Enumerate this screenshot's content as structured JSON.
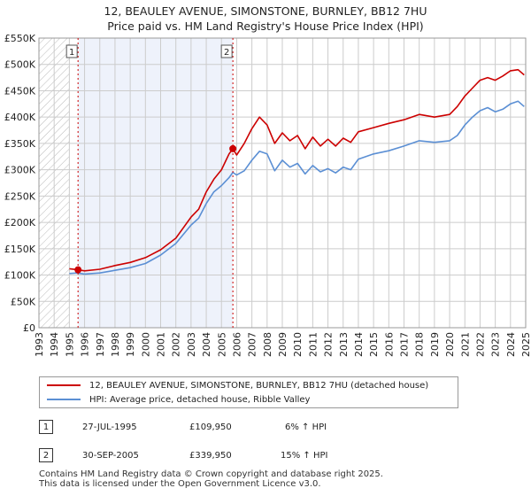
{
  "chart_data": {
    "type": "line",
    "title": "12, BEAULEY AVENUE, SIMONSTONE, BURNLEY, BB12 7HU",
    "subtitle": "Price paid vs. HM Land Registry's House Price Index (HPI)",
    "xlim": [
      1993,
      2025
    ],
    "ylim": [
      0,
      550000
    ],
    "x_ticks": [
      "1993",
      "1994",
      "1995",
      "1996",
      "1997",
      "1998",
      "1999",
      "2000",
      "2001",
      "2002",
      "2003",
      "2004",
      "2005",
      "2006",
      "2007",
      "2008",
      "2009",
      "2010",
      "2011",
      "2012",
      "2013",
      "2014",
      "2015",
      "2016",
      "2017",
      "2018",
      "2019",
      "2020",
      "2021",
      "2022",
      "2023",
      "2024",
      "2025"
    ],
    "y_ticks": [
      {
        "value": 0,
        "label": "£0"
      },
      {
        "value": 50000,
        "label": "£50K"
      },
      {
        "value": 100000,
        "label": "£100K"
      },
      {
        "value": 150000,
        "label": "£150K"
      },
      {
        "value": 200000,
        "label": "£200K"
      },
      {
        "value": 250000,
        "label": "£250K"
      },
      {
        "value": 300000,
        "label": "£300K"
      },
      {
        "value": 350000,
        "label": "£350K"
      },
      {
        "value": 400000,
        "label": "£400K"
      },
      {
        "value": 450000,
        "label": "£450K"
      },
      {
        "value": 500000,
        "label": "£500K"
      },
      {
        "value": 550000,
        "label": "£550K"
      }
    ],
    "grid": true,
    "hatched_before": 1995.0,
    "highlight_range": [
      1995.57,
      2005.75
    ],
    "series": [
      {
        "name": "12, BEAULEY AVENUE, SIMONSTONE, BURNLEY, BB12 7HU (detached house)",
        "color": "#cc0000",
        "x": [
          1995.0,
          1995.57,
          1996,
          1997,
          1998,
          1999,
          2000,
          2001,
          2002,
          2003,
          2003.5,
          2004,
          2004.5,
          2005,
          2005.5,
          2005.75,
          2006,
          2006.5,
          2007,
          2007.5,
          2008,
          2008.5,
          2009,
          2009.5,
          2010,
          2010.5,
          2011,
          2011.5,
          2012,
          2012.5,
          2013,
          2013.5,
          2014,
          2015,
          2016,
          2017,
          2018,
          2019,
          2020,
          2020.5,
          2021,
          2021.5,
          2022,
          2022.5,
          2023,
          2023.5,
          2024,
          2024.5,
          2024.9
        ],
        "y": [
          112000,
          109950,
          108000,
          111000,
          118000,
          124000,
          133000,
          148000,
          170000,
          210000,
          225000,
          258000,
          282000,
          300000,
          330000,
          339950,
          328000,
          350000,
          378000,
          400000,
          385000,
          350000,
          370000,
          355000,
          365000,
          340000,
          362000,
          345000,
          358000,
          345000,
          360000,
          352000,
          372000,
          380000,
          388000,
          395000,
          405000,
          400000,
          405000,
          420000,
          440000,
          455000,
          470000,
          475000,
          470000,
          478000,
          488000,
          490000,
          480000
        ]
      },
      {
        "name": "HPI: Average price, detached house, Ribble Valley",
        "color": "#5b8fd4",
        "x": [
          1995.0,
          1995.5,
          1996,
          1997,
          1998,
          1999,
          2000,
          2001,
          2002,
          2003,
          2003.5,
          2004,
          2004.5,
          2005,
          2005.5,
          2005.75,
          2006,
          2006.5,
          2007,
          2007.5,
          2008,
          2008.5,
          2009,
          2009.5,
          2010,
          2010.5,
          2011,
          2011.5,
          2012,
          2012.5,
          2013,
          2013.5,
          2014,
          2015,
          2016,
          2017,
          2018,
          2019,
          2020,
          2020.5,
          2021,
          2021.5,
          2022,
          2022.5,
          2023,
          2023.5,
          2024,
          2024.5,
          2024.9
        ],
        "y": [
          103000,
          104000,
          102000,
          104000,
          109000,
          114000,
          122000,
          138000,
          160000,
          195000,
          208000,
          236000,
          258000,
          270000,
          285000,
          295000,
          290000,
          298000,
          318000,
          335000,
          330000,
          298000,
          318000,
          305000,
          312000,
          292000,
          308000,
          296000,
          302000,
          294000,
          305000,
          300000,
          320000,
          330000,
          336000,
          345000,
          355000,
          352000,
          355000,
          365000,
          385000,
          400000,
          412000,
          418000,
          410000,
          415000,
          425000,
          430000,
          420000
        ]
      }
    ],
    "sales": [
      {
        "marker": "1",
        "x": 1995.57,
        "price": 109950,
        "date": "27-JUL-1995",
        "price_label": "£109,950",
        "hpi": "6% ↑ HPI"
      },
      {
        "marker": "2",
        "x": 2005.75,
        "price": 339950,
        "date": "30-SEP-2005",
        "price_label": "£339,950",
        "hpi": "15% ↑ HPI"
      }
    ]
  },
  "legend": {
    "property_label": "12, BEAULEY AVENUE, SIMONSTONE, BURNLEY, BB12 7HU (detached house)",
    "hpi_label": "HPI: Average price, detached house, Ribble Valley"
  },
  "footer": {
    "line1": "Contains HM Land Registry data © Crown copyright and database right 2025.",
    "line2": "This data is licensed under the Open Government Licence v3.0."
  },
  "colors": {
    "property": "#cc0000",
    "hpi": "#5b8fd4",
    "highlight": "#eef2fb",
    "grid": "#cccccc"
  }
}
